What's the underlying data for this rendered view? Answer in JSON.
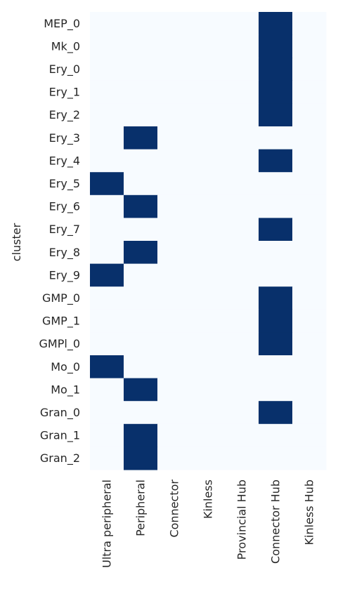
{
  "chart_data": {
    "type": "heatmap",
    "ylabel": "cluster",
    "xlabel": "",
    "x_categories": [
      "Ultra peripheral",
      "Peripheral",
      "Connector",
      "Kinless",
      "Provincial Hub",
      "Connector Hub",
      "Kinless Hub"
    ],
    "y_categories": [
      "MEP_0",
      "Mk_0",
      "Ery_0",
      "Ery_1",
      "Ery_2",
      "Ery_3",
      "Ery_4",
      "Ery_5",
      "Ery_6",
      "Ery_7",
      "Ery_8",
      "Ery_9",
      "GMP_0",
      "GMP_1",
      "GMPl_0",
      "Mo_0",
      "Mo_1",
      "Gran_0",
      "Gran_1",
      "Gran_2"
    ],
    "values": [
      [
        0,
        0,
        0,
        0,
        0,
        1,
        0
      ],
      [
        0,
        0,
        0,
        0,
        0,
        1,
        0
      ],
      [
        0,
        0,
        0,
        0,
        0,
        1,
        0
      ],
      [
        0,
        0,
        0,
        0,
        0,
        1,
        0
      ],
      [
        0,
        0,
        0,
        0,
        0,
        1,
        0
      ],
      [
        0,
        1,
        0,
        0,
        0,
        0,
        0
      ],
      [
        0,
        0,
        0,
        0,
        0,
        1,
        0
      ],
      [
        1,
        0,
        0,
        0,
        0,
        0,
        0
      ],
      [
        0,
        1,
        0,
        0,
        0,
        0,
        0
      ],
      [
        0,
        0,
        0,
        0,
        0,
        1,
        0
      ],
      [
        0,
        1,
        0,
        0,
        0,
        0,
        0
      ],
      [
        1,
        0,
        0,
        0,
        0,
        0,
        0
      ],
      [
        0,
        0,
        0,
        0,
        0,
        1,
        0
      ],
      [
        0,
        0,
        0,
        0,
        0,
        1,
        0
      ],
      [
        0,
        0,
        0,
        0,
        0,
        1,
        0
      ],
      [
        1,
        0,
        0,
        0,
        0,
        0,
        0
      ],
      [
        0,
        1,
        0,
        0,
        0,
        0,
        0
      ],
      [
        0,
        0,
        0,
        0,
        0,
        1,
        0
      ],
      [
        0,
        1,
        0,
        0,
        0,
        0,
        0
      ],
      [
        0,
        1,
        0,
        0,
        0,
        0,
        0
      ]
    ],
    "colors": {
      "low": "#f7fbff",
      "high": "#08306b",
      "text": "#262626"
    },
    "colorbar": false,
    "grid": false
  }
}
